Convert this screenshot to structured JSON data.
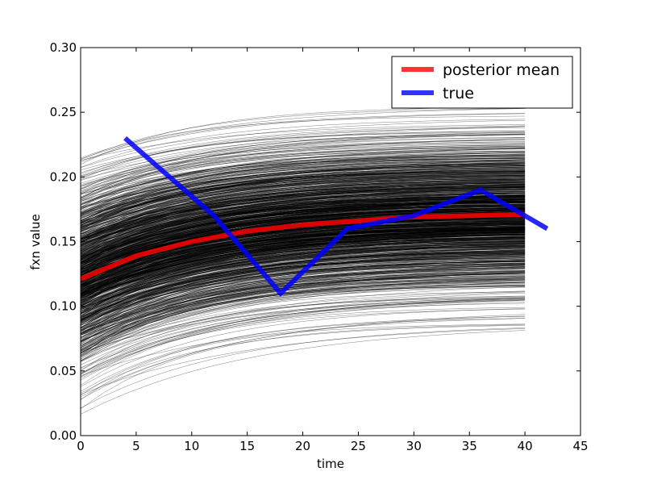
{
  "chart_data": {
    "type": "line",
    "title": "",
    "xlabel": "time",
    "ylabel": "fxn value",
    "xlim": [
      0,
      45
    ],
    "ylim": [
      0.0,
      0.3
    ],
    "xticks": [
      0,
      5,
      10,
      15,
      20,
      25,
      30,
      35,
      40,
      45
    ],
    "yticks": [
      0.0,
      0.05,
      0.1,
      0.15,
      0.2,
      0.25,
      0.3
    ],
    "xtick_labels": [
      "0",
      "5",
      "10",
      "15",
      "20",
      "25",
      "30",
      "35",
      "40",
      "45"
    ],
    "ytick_labels": [
      "0.00",
      "0.05",
      "0.10",
      "0.15",
      "0.20",
      "0.25",
      "0.30"
    ],
    "grid": false,
    "legend_position": "top-right",
    "series": [
      {
        "name": "posterior mean",
        "color": "#ff0000",
        "x": [
          0,
          5,
          10,
          15,
          20,
          25,
          30,
          35,
          40
        ],
        "y": [
          0.121,
          0.139,
          0.15,
          0.158,
          0.163,
          0.166,
          0.169,
          0.17,
          0.171
        ]
      },
      {
        "name": "true",
        "color": "#0000ff",
        "x": [
          4,
          12,
          18,
          24,
          30,
          36,
          42
        ],
        "y": [
          0.23,
          0.17,
          0.11,
          0.16,
          0.17,
          0.19,
          0.16
        ]
      }
    ],
    "posterior_samples": {
      "color": "#000000",
      "x_range": [
        0,
        40
      ],
      "start_range": [
        0.03,
        0.22
      ],
      "end_range": [
        0.085,
        0.26
      ],
      "description_count": 1000
    }
  }
}
